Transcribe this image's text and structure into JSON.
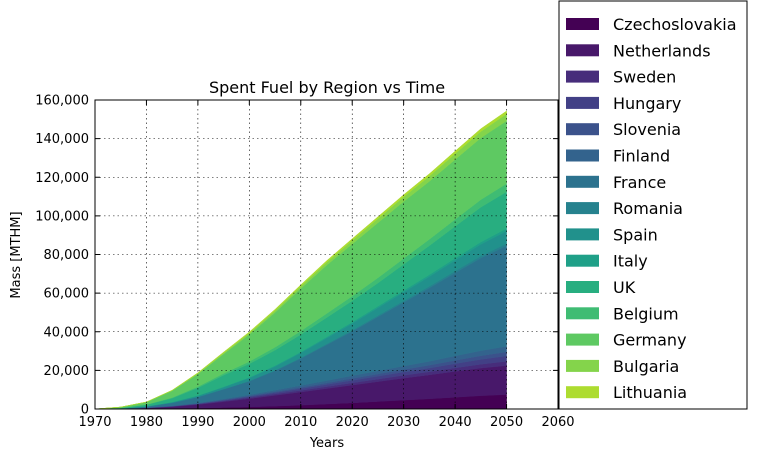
{
  "chart_data": {
    "type": "area",
    "title": "Spent Fuel by Region vs Time",
    "xlabel": "Years",
    "ylabel": "Mass [MTHM]",
    "xlim": [
      1970,
      2060
    ],
    "ylim": [
      0,
      160000
    ],
    "x_ticks": [
      "1970",
      "1980",
      "1990",
      "2000",
      "2010",
      "2020",
      "2030",
      "2040",
      "2050",
      "2060"
    ],
    "y_ticks": [
      "0",
      "20,000",
      "40,000",
      "60,000",
      "80,000",
      "100,000",
      "120,000",
      "140,000",
      "160,000"
    ],
    "grid": true,
    "legend_placement": "right-outside",
    "x": [
      1970,
      1975,
      1980,
      1985,
      1990,
      1995,
      2000,
      2005,
      2010,
      2015,
      2020,
      2025,
      2030,
      2035,
      2040,
      2045,
      2050
    ],
    "series": [
      {
        "name": "Czechoslovakia",
        "color": "#440154",
        "values": [
          0,
          50,
          150,
          300,
          500,
          800,
          1100,
          1500,
          2000,
          2600,
          3200,
          3900,
          4600,
          5300,
          6100,
          6900,
          7500
        ]
      },
      {
        "name": "Netherlands",
        "color": "#48186a",
        "values": [
          0,
          100,
          400,
          900,
          1800,
          3000,
          4300,
          5600,
          6800,
          8000,
          9200,
          10300,
          11400,
          12400,
          13400,
          14300,
          15000
        ]
      },
      {
        "name": "Sweden",
        "color": "#472d7b",
        "values": [
          0,
          20,
          80,
          150,
          250,
          400,
          550,
          700,
          850,
          1000,
          1150,
          1300,
          1450,
          1600,
          1800,
          2000,
          2200
        ]
      },
      {
        "name": "Hungary",
        "color": "#424086",
        "values": [
          0,
          20,
          50,
          100,
          200,
          350,
          500,
          700,
          900,
          1100,
          1300,
          1500,
          1700,
          1900,
          2200,
          2500,
          2800
        ]
      },
      {
        "name": "Slovenia",
        "color": "#3b528b",
        "values": [
          0,
          10,
          30,
          80,
          150,
          250,
          350,
          500,
          650,
          800,
          1000,
          1150,
          1300,
          1500,
          1700,
          1900,
          2100
        ]
      },
      {
        "name": "Finland",
        "color": "#33638d",
        "values": [
          0,
          20,
          80,
          180,
          300,
          450,
          600,
          800,
          1000,
          1200,
          1400,
          1600,
          1800,
          2000,
          2300,
          2600,
          2900
        ]
      },
      {
        "name": "France",
        "color": "#2c728e",
        "values": [
          0,
          100,
          500,
          1500,
          3000,
          5000,
          7000,
          10000,
          14000,
          18500,
          23000,
          28000,
          33000,
          38000,
          43000,
          48000,
          52000
        ]
      },
      {
        "name": "Romania",
        "color": "#26828e",
        "values": [
          0,
          0,
          0,
          20,
          50,
          100,
          200,
          300,
          400,
          500,
          600,
          700,
          800,
          900,
          1000,
          1100,
          1200
        ]
      },
      {
        "name": "Spain",
        "color": "#21918c",
        "values": [
          0,
          20,
          100,
          300,
          600,
          1000,
          1500,
          2000,
          2500,
          3000,
          3500,
          4000,
          4500,
          5000,
          5500,
          6000,
          6500
        ]
      },
      {
        "name": "Italy",
        "color": "#1fa088",
        "values": [
          0,
          20,
          50,
          100,
          150,
          200,
          300,
          400,
          500,
          600,
          700,
          800,
          900,
          1000,
          1100,
          1200,
          1300
        ]
      },
      {
        "name": "UK",
        "color": "#28ae80",
        "values": [
          0,
          200,
          800,
          2000,
          4000,
          6000,
          7000,
          8000,
          9000,
          10000,
          11000,
          12000,
          13500,
          15000,
          16500,
          18000,
          19000
        ]
      },
      {
        "name": "Belgium",
        "color": "#3fbc73",
        "values": [
          0,
          20,
          100,
          300,
          600,
          900,
          1200,
          1500,
          1800,
          2100,
          2400,
          2700,
          3000,
          3300,
          3600,
          3900,
          4200
        ]
      },
      {
        "name": "Germany",
        "color": "#5ec962",
        "values": [
          0,
          400,
          1200,
          3500,
          6500,
          10000,
          14000,
          18000,
          22000,
          25000,
          27000,
          28500,
          29500,
          30000,
          31000,
          32000,
          32500
        ]
      },
      {
        "name": "Bulgaria",
        "color": "#84d44b",
        "values": [
          0,
          20,
          80,
          200,
          400,
          600,
          800,
          1000,
          1200,
          1500,
          1800,
          2100,
          2400,
          2700,
          3000,
          3300,
          3600
        ]
      },
      {
        "name": "Lithuania",
        "color": "#addc30",
        "values": [
          0,
          0,
          30,
          100,
          250,
          400,
          500,
          600,
          700,
          800,
          900,
          1000,
          1100,
          1200,
          1300,
          1400,
          1500
        ]
      }
    ]
  }
}
